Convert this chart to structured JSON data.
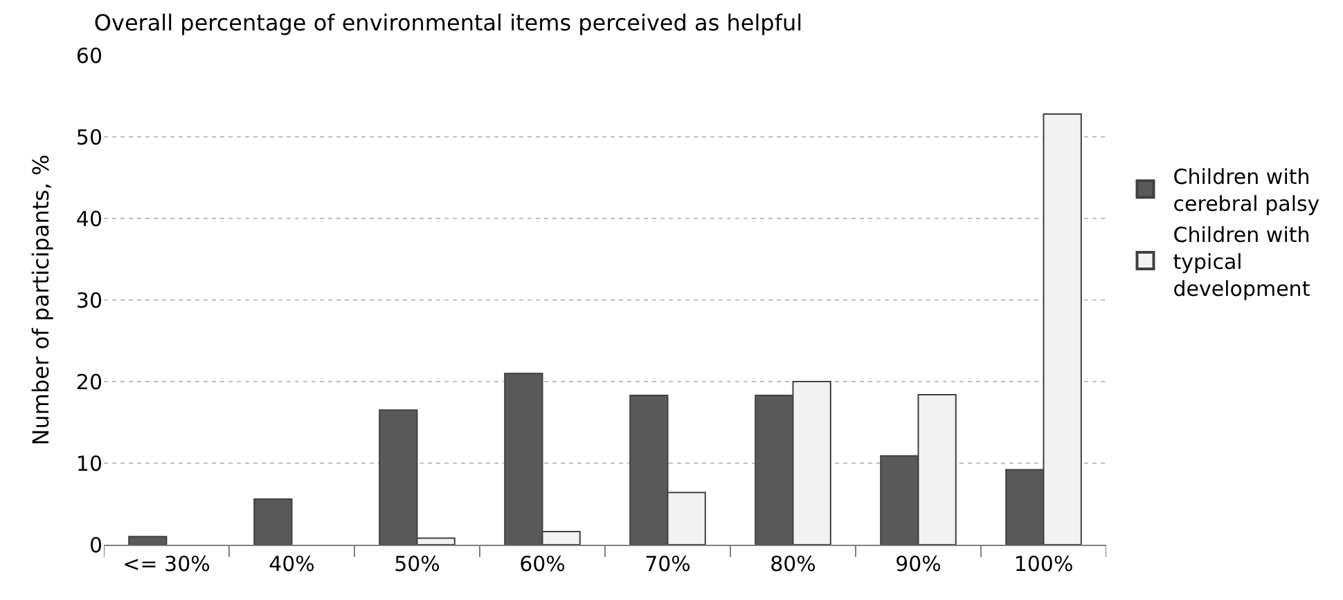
{
  "chart_data": {
    "type": "bar",
    "title": "Overall percentage of environmental items perceived as helpful",
    "ylabel": "Number of participants, %",
    "categories": [
      "<= 30%",
      "40%",
      "50%",
      "60%",
      "70%",
      "80%",
      "90%",
      "100%"
    ],
    "series": [
      {
        "name": "Children with cerebral palsy",
        "color": "#595959",
        "values": [
          1.0,
          5.6,
          16.5,
          21.0,
          18.3,
          18.3,
          10.9,
          9.2
        ]
      },
      {
        "name": "Children with typical development",
        "color": "#f2f2f2",
        "values": [
          null,
          null,
          0.8,
          1.6,
          6.4,
          20.0,
          18.4,
          52.8
        ]
      }
    ],
    "ylim": [
      0,
      60
    ],
    "yticks": [
      0,
      10,
      20,
      30,
      40,
      50,
      60
    ],
    "grid": "y",
    "legend": "right"
  }
}
